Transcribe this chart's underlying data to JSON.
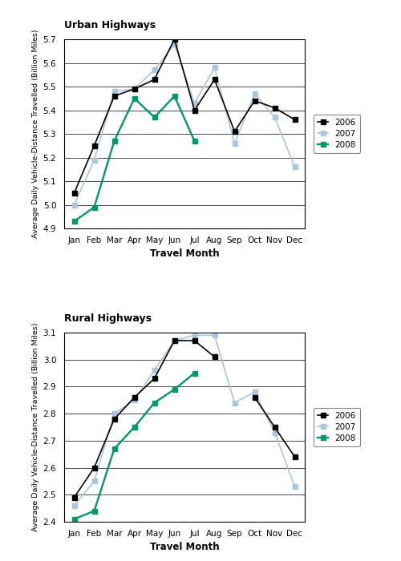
{
  "months": [
    "Jan",
    "Feb",
    "Mar",
    "Apr",
    "May",
    "Jun",
    "Jul",
    "Aug",
    "Sep",
    "Oct",
    "Nov",
    "Dec"
  ],
  "urban": {
    "title": "Urban Highways",
    "ylabel": "Average Daily Vehicle-Distance Travelled (Billion Miles)",
    "xlabel": "Travel Month",
    "ylim": [
      4.9,
      5.7
    ],
    "yticks": [
      4.9,
      5.0,
      5.1,
      5.2,
      5.3,
      5.4,
      5.5,
      5.6,
      5.7
    ],
    "y2006": [
      5.05,
      5.25,
      5.46,
      5.49,
      5.53,
      5.7,
      5.4,
      5.53,
      5.31,
      5.44,
      5.41,
      5.36
    ],
    "y2007": [
      5.0,
      5.19,
      5.48,
      5.49,
      5.57,
      5.68,
      5.43,
      5.58,
      5.26,
      5.47,
      5.37,
      5.16
    ],
    "y2008": [
      4.93,
      4.99,
      5.27,
      5.45,
      5.37,
      5.46,
      5.27,
      null,
      null,
      null,
      null,
      null
    ]
  },
  "rural": {
    "title": "Rural Highways",
    "ylabel": "Average Daily Vehicle-Distance Travelled (Billion Miles)",
    "xlabel": "Travel Month",
    "ylim": [
      2.4,
      3.1
    ],
    "yticks": [
      2.4,
      2.5,
      2.6,
      2.7,
      2.8,
      2.9,
      3.0,
      3.1
    ],
    "y2006": [
      2.49,
      2.6,
      2.78,
      2.86,
      2.93,
      3.07,
      3.07,
      3.01,
      null,
      2.86,
      2.75,
      2.64
    ],
    "y2007": [
      2.46,
      2.55,
      2.8,
      2.85,
      2.96,
      3.07,
      3.09,
      3.09,
      2.84,
      2.88,
      2.73,
      2.53
    ],
    "y2008": [
      2.41,
      2.44,
      2.67,
      2.75,
      2.84,
      2.89,
      2.95,
      null,
      null,
      null,
      null,
      null
    ]
  },
  "color_2006": "#000000",
  "color_2007": "#adc6e0",
  "color_2008": "#00996a",
  "linewidth": 1.2,
  "markersize": 5
}
